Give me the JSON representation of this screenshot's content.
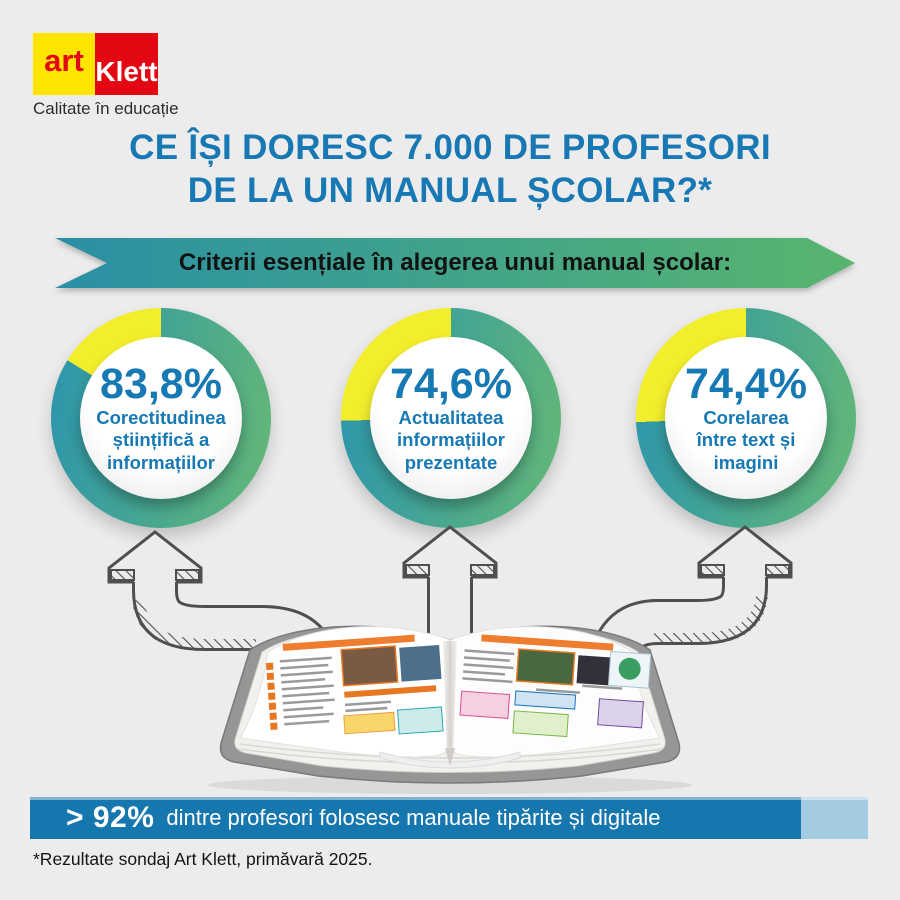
{
  "brand": {
    "art": "art",
    "klett": "Klett",
    "tagline": "Calitate în educație",
    "art_bg": "#ffe500",
    "art_color": "#e30613",
    "klett_bg": "#e30613",
    "klett_color": "#ffffff"
  },
  "title": {
    "line1": "CE ÎȘI DORESC 7.000 DE PROFESORI",
    "line2": "DE LA UN MANUAL ȘCOLAR?*",
    "color": "#1878b4"
  },
  "ribbon": {
    "label": "Criterii esențiale în alegerea unui manual școlar:",
    "gradient_start": "#2a90a5",
    "gradient_end": "#58b56e"
  },
  "chart_data": {
    "type": "pie",
    "subtype": "donut-set",
    "title": "Criterii esențiale în alegerea unui manual școlar:",
    "legend_position": "none",
    "donuts": [
      {
        "value": 83.8,
        "value_label": "83,8%",
        "label": "Corectitudinea științifică a informațiilor",
        "label_lines": [
          "Corectitudinea",
          "științifică a",
          "informațiilor"
        ]
      },
      {
        "value": 74.6,
        "value_label": "74,6%",
        "label": "Actualitatea informațiilor prezentate",
        "label_lines": [
          "Actualitatea",
          "informațiilor",
          "prezentate"
        ]
      },
      {
        "value": 74.4,
        "value_label": "74,4%",
        "label": "Corelarea între text și imagini",
        "label_lines": [
          "Corelarea",
          "între text și",
          "imagini"
        ]
      }
    ],
    "colors": {
      "arc_gradient_start": "#2f97a9",
      "arc_gradient_end": "#5fb57a",
      "remainder": "#f3ee2c",
      "value_text": "#1779b3"
    }
  },
  "highlight_bar": {
    "value": 92,
    "value_label": "> 92%",
    "text": "dintre profesori folosesc manuale tipărite și digitale",
    "fill_color": "#1577ad",
    "remainder_color": "#a3cbe1"
  },
  "footnote": {
    "text": "*Rezultate sondaj Art Klett, primăvară 2025."
  }
}
